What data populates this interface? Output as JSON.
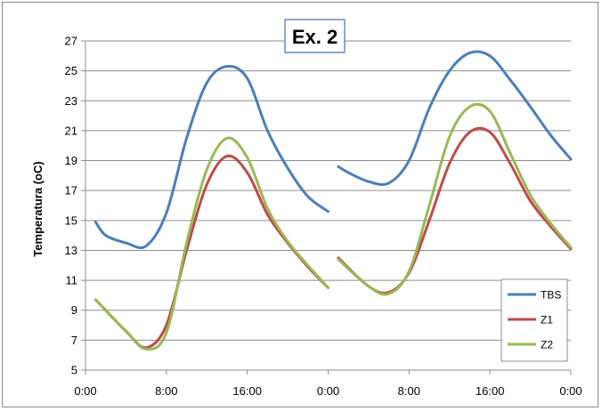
{
  "chart_data": {
    "type": "line",
    "title": "Ex. 2",
    "xlabel": "",
    "ylabel": "Temperatura (oC)",
    "ylim": [
      5,
      27
    ],
    "yticks": [
      5,
      7,
      9,
      11,
      13,
      15,
      17,
      19,
      21,
      23,
      25,
      27
    ],
    "xlim": [
      0,
      48
    ],
    "xtick_values": [
      0,
      8,
      16,
      24,
      32,
      40,
      48
    ],
    "xtick_labels": [
      "0:00",
      "8:00",
      "16:00",
      "0:00",
      "8:00",
      "16:00",
      "0:00"
    ],
    "grid": "horizontal",
    "legend_position": "bottom-right",
    "series": [
      {
        "name": "TBS",
        "color": "#4a7ebb",
        "segments": [
          [
            [
              1,
              14.9
            ],
            [
              2,
              14.0
            ],
            [
              4,
              13.5
            ],
            [
              6,
              13.3
            ],
            [
              8,
              15.5
            ],
            [
              10,
              20.5
            ],
            [
              12,
              24.2
            ],
            [
              14,
              25.3
            ],
            [
              16,
              24.5
            ],
            [
              18,
              21.0
            ],
            [
              20,
              18.5
            ],
            [
              22,
              16.6
            ],
            [
              24,
              15.6
            ]
          ],
          [
            [
              25,
              18.6
            ],
            [
              26,
              18.2
            ],
            [
              28,
              17.6
            ],
            [
              30,
              17.5
            ],
            [
              32,
              19.0
            ],
            [
              34,
              22.5
            ],
            [
              36,
              25.0
            ],
            [
              38,
              26.2
            ],
            [
              40,
              26.0
            ],
            [
              42,
              24.4
            ],
            [
              44,
              22.6
            ],
            [
              46,
              20.7
            ],
            [
              48,
              19.1
            ]
          ]
        ]
      },
      {
        "name": "Z1",
        "color": "#be4b48",
        "segments": [
          [
            [
              1,
              9.7
            ],
            [
              4,
              7.6
            ],
            [
              6,
              6.5
            ],
            [
              8,
              8.0
            ],
            [
              10,
              13.0
            ],
            [
              12,
              17.4
            ],
            [
              14,
              19.3
            ],
            [
              16,
              18.2
            ],
            [
              18,
              15.4
            ],
            [
              20,
              13.5
            ],
            [
              22,
              11.9
            ],
            [
              24,
              10.5
            ]
          ],
          [
            [
              25,
              12.5
            ],
            [
              28,
              10.6
            ],
            [
              30,
              10.2
            ],
            [
              32,
              11.5
            ],
            [
              34,
              15.0
            ],
            [
              36,
              18.8
            ],
            [
              38,
              20.9
            ],
            [
              40,
              20.9
            ],
            [
              42,
              18.8
            ],
            [
              44,
              16.3
            ],
            [
              46,
              14.6
            ],
            [
              48,
              13.1
            ]
          ]
        ]
      },
      {
        "name": "Z2",
        "color": "#98b954",
        "segments": [
          [
            [
              1,
              9.7
            ],
            [
              4,
              7.6
            ],
            [
              6,
              6.4
            ],
            [
              8,
              7.5
            ],
            [
              10,
              13.5
            ],
            [
              12,
              18.4
            ],
            [
              14,
              20.5
            ],
            [
              16,
              19.2
            ],
            [
              18,
              15.8
            ],
            [
              20,
              13.6
            ],
            [
              22,
              12.0
            ],
            [
              24,
              10.5
            ]
          ],
          [
            [
              25,
              12.4
            ],
            [
              28,
              10.6
            ],
            [
              30,
              10.1
            ],
            [
              32,
              11.6
            ],
            [
              34,
              16.0
            ],
            [
              36,
              20.6
            ],
            [
              38,
              22.6
            ],
            [
              40,
              22.3
            ],
            [
              42,
              19.5
            ],
            [
              44,
              16.7
            ],
            [
              46,
              14.8
            ],
            [
              48,
              13.2
            ]
          ]
        ]
      }
    ]
  }
}
